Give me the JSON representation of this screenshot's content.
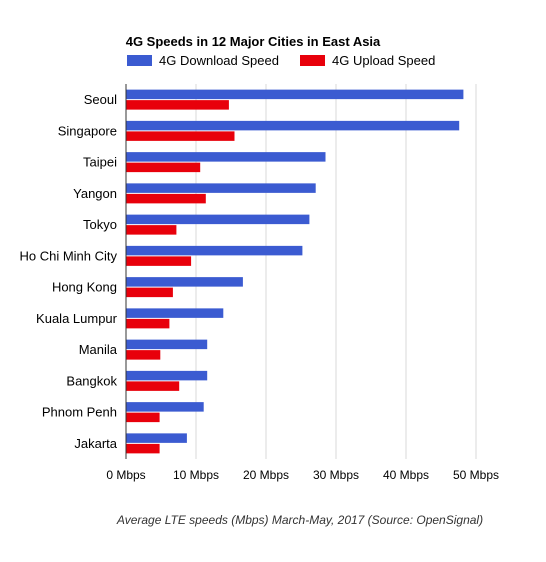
{
  "chart_data": {
    "type": "bar",
    "orientation": "horizontal",
    "title": "4G Speeds in 12 Major Cities in East Asia",
    "categories": [
      "Seoul",
      "Singapore",
      "Taipei",
      "Yangon",
      "Tokyo",
      "Ho Chi Minh City",
      "Hong Kong",
      "Kuala Lumpur",
      "Manila",
      "Bangkok",
      "Phnom Penh",
      "Jakarta"
    ],
    "series": [
      {
        "name": "4G Download Speed",
        "color": "#3b5bd1",
        "values": [
          48.2,
          47.6,
          28.5,
          27.1,
          26.2,
          25.2,
          16.7,
          13.9,
          11.6,
          11.6,
          11.1,
          8.7
        ]
      },
      {
        "name": "4G Upload Speed",
        "color": "#e8000b",
        "values": [
          14.7,
          15.5,
          10.6,
          11.4,
          7.2,
          9.3,
          6.7,
          6.2,
          4.9,
          7.6,
          4.8,
          4.8
        ]
      }
    ],
    "xlim": [
      0,
      50
    ],
    "x_ticks": [
      {
        "value": 0,
        "label": "0 Mbps"
      },
      {
        "value": 10,
        "label": "10 Mbps"
      },
      {
        "value": 20,
        "label": "20 Mbps"
      },
      {
        "value": 30,
        "label": "30 Mbps"
      },
      {
        "value": 40,
        "label": "40 Mbps"
      },
      {
        "value": 50,
        "label": "50 Mbps"
      }
    ],
    "grid": true,
    "legend_position": "top",
    "caption": "Average LTE speeds (Mbps) March-May, 2017 (Source: OpenSignal)"
  }
}
